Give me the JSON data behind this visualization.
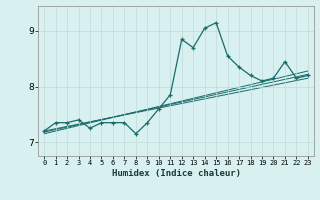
{
  "xlabel": "Humidex (Indice chaleur)",
  "x_values": [
    0,
    1,
    2,
    3,
    4,
    5,
    6,
    7,
    8,
    9,
    10,
    11,
    12,
    13,
    14,
    15,
    16,
    17,
    18,
    19,
    20,
    21,
    22,
    23
  ],
  "main_line": [
    7.2,
    7.35,
    7.35,
    7.4,
    7.25,
    7.35,
    7.35,
    7.35,
    7.15,
    7.35,
    7.6,
    7.85,
    8.85,
    8.7,
    9.05,
    9.15,
    8.55,
    8.35,
    8.2,
    8.1,
    8.15,
    8.45,
    8.15,
    8.2
  ],
  "regression_lines": [
    {
      "x": [
        0,
        23
      ],
      "y": [
        7.2,
        8.15
      ]
    },
    {
      "x": [
        0,
        23
      ],
      "y": [
        7.18,
        8.22
      ]
    },
    {
      "x": [
        0,
        23
      ],
      "y": [
        7.15,
        8.28
      ]
    }
  ],
  "line_color": "#1a6b6b",
  "bg_color": "#d8f0f0",
  "grid_color": "#c0dada",
  "ylim": [
    6.75,
    9.45
  ],
  "xlim": [
    -0.5,
    23.5
  ],
  "yticks": [
    7,
    8,
    9
  ],
  "xticks": [
    0,
    1,
    2,
    3,
    4,
    5,
    6,
    7,
    8,
    9,
    10,
    11,
    12,
    13,
    14,
    15,
    16,
    17,
    18,
    19,
    20,
    21,
    22,
    23
  ]
}
